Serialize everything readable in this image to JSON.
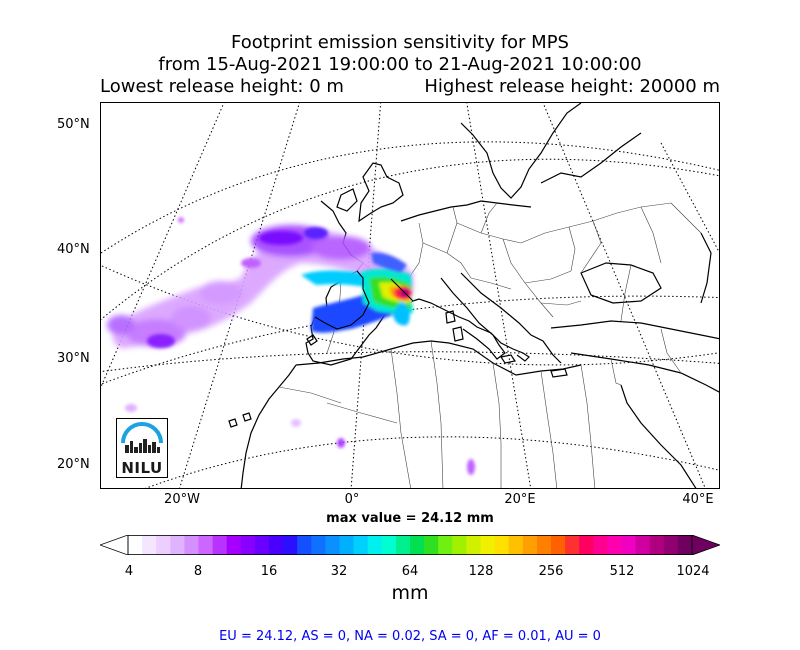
{
  "title": {
    "line1": "Footprint emission sensitivity for MPS",
    "line2": "from 15-Aug-2021 19:00:00 to 21-Aug-2021 10:00:00",
    "lowest_release": "Lowest release height: 0 m",
    "highest_release": "Highest release height: 20000 m"
  },
  "map": {
    "lat_labels": [
      "50°N",
      "40°N",
      "30°N",
      "20°N"
    ],
    "lon_labels": [
      "20°W",
      "0°",
      "20°E",
      "40°E"
    ],
    "logo_text": "NILU",
    "colors": {
      "land_line": "#000000",
      "graticule": "#000000",
      "border": "#444444"
    }
  },
  "max_value": "max value = 24.12 mm",
  "colorbar": {
    "ticks": [
      "4",
      "8",
      "16",
      "32",
      "64",
      "128",
      "256",
      "512",
      "1024"
    ],
    "unit": "mm",
    "colors": [
      "#ffffff",
      "#f5e6ff",
      "#eccfff",
      "#e0b3ff",
      "#d590ff",
      "#cc66ff",
      "#b833ff",
      "#a500ff",
      "#8a00ff",
      "#6a00ff",
      "#4a00ff",
      "#2a10ff",
      "#1450ff",
      "#1070ff",
      "#0a90ff",
      "#00b0ff",
      "#00d0ff",
      "#00f0f0",
      "#00ffd0",
      "#00f090",
      "#00e050",
      "#30e020",
      "#70f010",
      "#a0f000",
      "#d0f000",
      "#f0f000",
      "#ffe000",
      "#ffc000",
      "#ffa000",
      "#ff8000",
      "#ff6000",
      "#ff3030",
      "#ff0060",
      "#ff0090",
      "#ff00b0",
      "#f000c0",
      "#d000a0",
      "#b00080",
      "#900070",
      "#700060"
    ]
  },
  "footer": "EU = 24.12,  AS = 0,  NA = 0.02,  SA = 0,  AF = 0.01,  AU = 0"
}
